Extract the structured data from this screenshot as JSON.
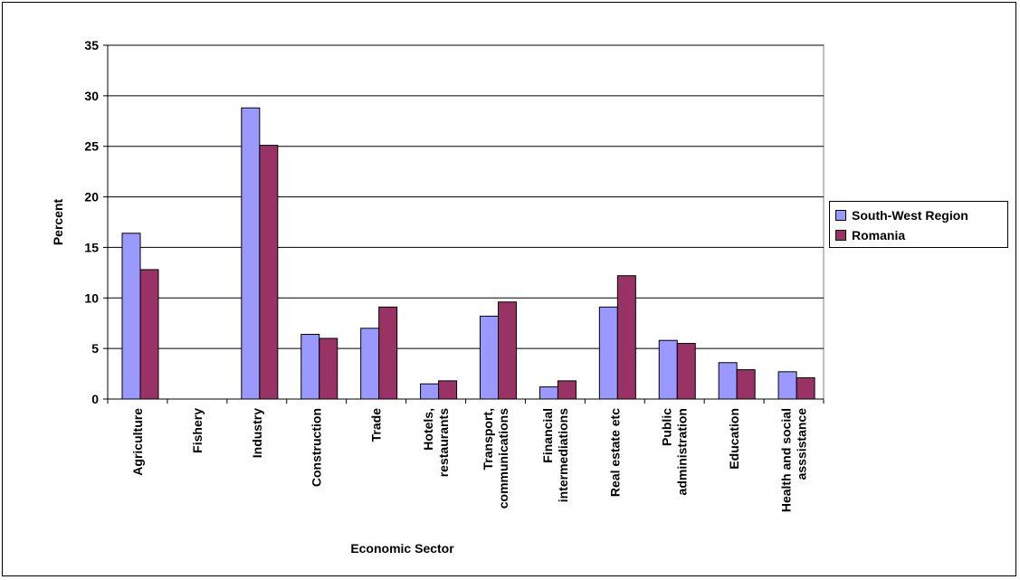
{
  "chart_data": {
    "type": "bar",
    "title": "",
    "xlabel": "Economic Sector",
    "ylabel": "Percent",
    "ylim": [
      0,
      35
    ],
    "yticks": [
      "0",
      "5",
      "10",
      "15",
      "20",
      "25",
      "30",
      "35"
    ],
    "grid": "horizontal",
    "legend_position": "right",
    "categories": [
      [
        "Agriculture"
      ],
      [
        "Fishery"
      ],
      [
        "Industry"
      ],
      [
        "Construction"
      ],
      [
        "Trade"
      ],
      [
        "Hotels,",
        "restaurants"
      ],
      [
        "Transport,",
        "communications"
      ],
      [
        "Financial",
        "intermediations"
      ],
      [
        "Real estate etc"
      ],
      [
        "Public",
        "administration"
      ],
      [
        "Education"
      ],
      [
        "Health and social",
        "asssistance"
      ]
    ],
    "series": [
      {
        "name": "South-West Region",
        "color": "#9999ff",
        "values": [
          16.4,
          0,
          28.8,
          6.4,
          7.0,
          1.5,
          8.2,
          1.2,
          9.1,
          5.8,
          3.6,
          2.7
        ]
      },
      {
        "name": "Romania",
        "color": "#993366",
        "values": [
          12.8,
          0,
          25.1,
          6.0,
          9.1,
          1.8,
          9.6,
          1.8,
          12.2,
          5.5,
          2.9,
          2.1
        ]
      }
    ]
  }
}
